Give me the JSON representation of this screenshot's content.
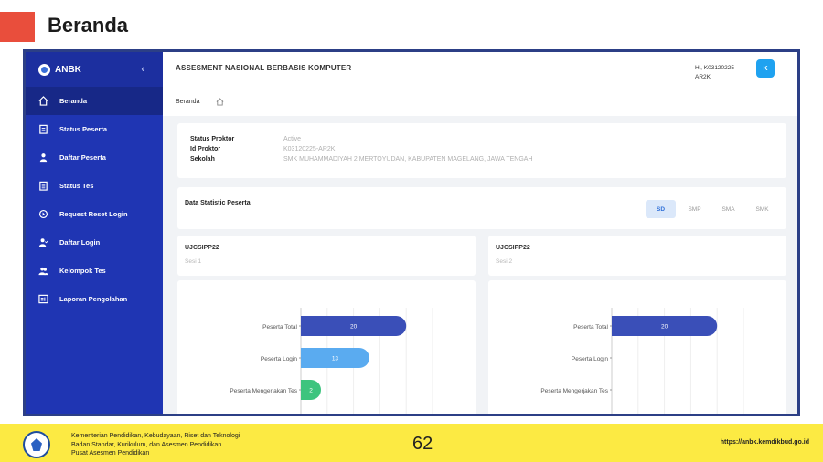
{
  "slide": {
    "title": "Beranda",
    "page_number": "62",
    "accent_color": "#e94e3c"
  },
  "sidebar": {
    "brand": "ANBK",
    "collapse_icon": "chevron-left-icon",
    "items": [
      {
        "label": "Beranda",
        "icon": "home-icon",
        "active": true
      },
      {
        "label": "Status Peserta",
        "icon": "clipboard-icon",
        "active": false
      },
      {
        "label": "Daftar Peserta",
        "icon": "user-icon",
        "active": false
      },
      {
        "label": "Status Tes",
        "icon": "list-icon",
        "active": false
      },
      {
        "label": "Request Reset Login",
        "icon": "reset-icon",
        "active": false
      },
      {
        "label": "Daftar Login",
        "icon": "user-check-icon",
        "active": false
      },
      {
        "label": "Kelompok Tes",
        "icon": "users-icon",
        "active": false
      },
      {
        "label": "Laporan Pengolahan",
        "icon": "report-icon",
        "active": false
      }
    ],
    "color": "#1f35b3"
  },
  "header": {
    "app_title": "ASSESMENT NASIONAL BERBASIS KOMPUTER",
    "greeting": "Hi, K03120225-AR2K",
    "avatar_initial": "K"
  },
  "breadcrumb": {
    "current": "Beranda",
    "separator": "|"
  },
  "info": {
    "rows": [
      {
        "key": "Status Proktor",
        "value": "Active"
      },
      {
        "key": "Id Proktor",
        "value": "K03120225-AR2K"
      },
      {
        "key": "Sekolah",
        "value": "SMK MUHAMMADIYAH 2 MERTOYUDAN, KABUPATEN MAGELANG, JAWA TENGAH"
      }
    ]
  },
  "stats": {
    "title": "Data Statistic Peserta",
    "tabs": [
      "SD",
      "SMP",
      "SMA",
      "SMK"
    ],
    "active_tab": "SD"
  },
  "sessions": [
    {
      "name": "UJCSIPP22",
      "sub": "Sesi 1"
    },
    {
      "name": "UJCSIPP22",
      "sub": "Sesi 2"
    }
  ],
  "chart_data": [
    {
      "type": "bar",
      "orientation": "horizontal",
      "categories": [
        "Peserta Total",
        "Peserta Login",
        "Peserta Mengerjakan Tes"
      ],
      "values": [
        20,
        13,
        2
      ],
      "colors": [
        "#3a4fb8",
        "#5aabf0",
        "#3dc47e"
      ],
      "xlim": [
        0,
        25
      ]
    },
    {
      "type": "bar",
      "orientation": "horizontal",
      "categories": [
        "Peserta Total",
        "Peserta Login",
        "Peserta Mengerjakan Tes"
      ],
      "values": [
        20,
        null,
        null
      ],
      "colors": [
        "#3a4fb8",
        "#5aabf0",
        "#3dc47e"
      ],
      "xlim": [
        0,
        25
      ]
    }
  ],
  "footer": {
    "line1": "Kementerian Pendidikan, Kebudayaan, Riset dan Teknologi",
    "line2": "Badan Standar, Kurikulum, dan Asesmen Pendidikan",
    "line3": "Pusat Asesmen Pendidikan",
    "url": "https://anbk.kemdikbud.go.id",
    "color": "#fcea43"
  }
}
